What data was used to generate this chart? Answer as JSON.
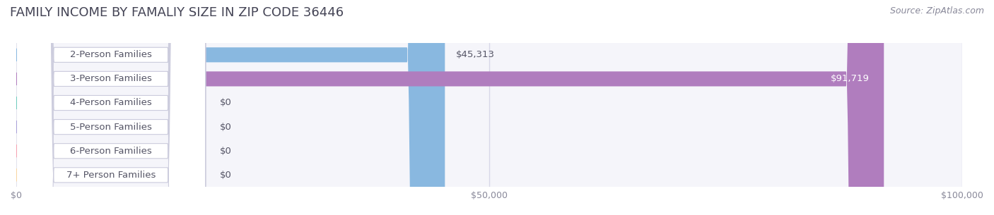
{
  "title": "FAMILY INCOME BY FAMALIY SIZE IN ZIP CODE 36446",
  "source": "Source: ZipAtlas.com",
  "categories": [
    "2-Person Families",
    "3-Person Families",
    "4-Person Families",
    "5-Person Families",
    "6-Person Families",
    "7+ Person Families"
  ],
  "values": [
    45313,
    91719,
    0,
    0,
    0,
    0
  ],
  "labels": [
    "$45,313",
    "$91,719",
    "$0",
    "$0",
    "$0",
    "$0"
  ],
  "bar_colors": [
    "#89b8e0",
    "#b07dbe",
    "#6ecbbd",
    "#a89fd8",
    "#f5a0b0",
    "#f7d4a0"
  ],
  "bar_bg_color": "#f0f0f5",
  "xlim": [
    0,
    100000
  ],
  "xticks": [
    0,
    50000,
    100000
  ],
  "xtick_labels": [
    "$0",
    "$50,000",
    "$100,000"
  ],
  "title_fontsize": 13,
  "label_fontsize": 9.5,
  "tick_fontsize": 9,
  "source_fontsize": 9,
  "bg_color": "#ffffff",
  "grid_color": "#d8d8e8",
  "bar_height": 0.62,
  "row_bg_color": "#f5f5fa"
}
